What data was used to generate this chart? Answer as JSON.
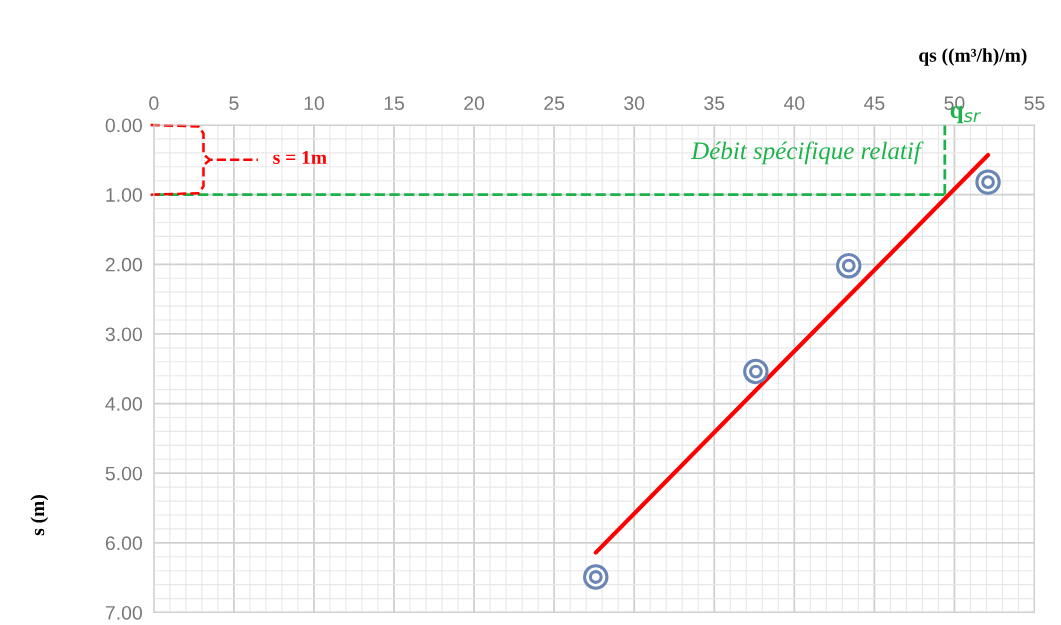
{
  "chart_data": {
    "type": "scatter",
    "xlabel": "qs ((m³/h)/m)",
    "ylabel": "s (m)",
    "xlim": [
      0,
      55
    ],
    "xticks": [
      0,
      5,
      10,
      15,
      20,
      25,
      30,
      35,
      40,
      45,
      50,
      55
    ],
    "ylim": [
      7,
      0
    ],
    "yticks": [
      {
        "value": 0,
        "label": "0.00"
      },
      {
        "value": 1,
        "label": "1.00"
      },
      {
        "value": 2,
        "label": "2.00"
      },
      {
        "value": 3,
        "label": "3.00"
      },
      {
        "value": 4,
        "label": "4.00"
      },
      {
        "value": 5,
        "label": "5.00"
      },
      {
        "value": 6,
        "label": "6.00"
      },
      {
        "value": 7,
        "label": "7.00"
      }
    ],
    "grid": true,
    "series": [
      {
        "marker": "circle",
        "color": "#6a86b4",
        "x": [
          27.6,
          37.6,
          43.4,
          52.1
        ],
        "values": [
          6.49,
          3.54,
          2.02,
          0.82
        ]
      },
      {
        "type": "line",
        "color": "#ff0000",
        "line_style": "solid",
        "x": [
          27.6,
          52.1
        ],
        "values": [
          6.14,
          0.43
        ]
      }
    ],
    "ref_lines": [
      {
        "axis": "y",
        "value": 1,
        "label": "Débit spécifique relatif",
        "color": "#1db34a",
        "line_style": "dashed"
      },
      {
        "axis": "x",
        "value": 49.4,
        "label": "q$_{sr}$",
        "color": "#1db34a",
        "line_style": "dashed"
      }
    ],
    "annotations": [
      "s = 1m"
    ]
  }
}
